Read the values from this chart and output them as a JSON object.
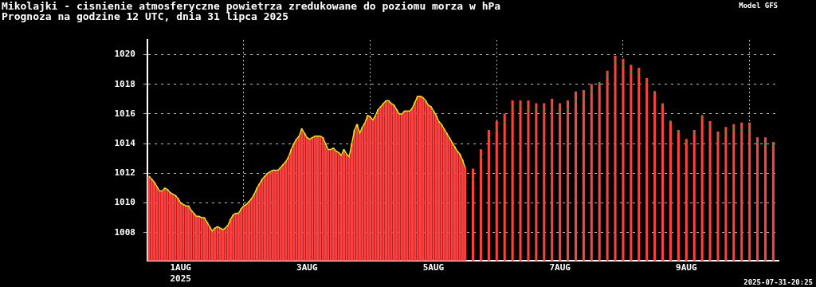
{
  "chart_data": {
    "type": "bar",
    "title": "Mikolajki - cisnienie atmosferyczne powietrza zredukowane do poziomu morza w hPa",
    "subtitle": "Prognoza na godzine 12 UTC, dnia 31 lipca 2025",
    "annotations": [
      "Model GFS",
      "2025-07-31-20:25"
    ],
    "xlim": [
      "2025-07-31T11:24",
      "2025-08-10T11:00"
    ],
    "xticks": [
      {
        "value": "2025-08-01",
        "label": "1AUG\n2025"
      },
      {
        "value": "2025-08-03",
        "label": "3AUG"
      },
      {
        "value": "2025-08-05",
        "label": "5AUG"
      },
      {
        "value": "2025-08-07",
        "label": "7AUG"
      },
      {
        "value": "2025-08-09",
        "label": "9AUG"
      }
    ],
    "ylim": [
      1006.1,
      1021
    ],
    "yticks": [
      1008,
      1010,
      1012,
      1014,
      1016,
      1018,
      1020
    ],
    "grid": true,
    "legend": false,
    "series": [
      {
        "color": "#ff4040",
        "x": [
          "2025-07-31T12:00",
          "2025-07-31T13:00",
          "2025-07-31T14:00",
          "2025-07-31T15:00",
          "2025-07-31T16:00",
          "2025-07-31T17:00",
          "2025-07-31T18:00",
          "2025-07-31T19:00",
          "2025-07-31T20:00",
          "2025-07-31T21:00",
          "2025-07-31T22:00",
          "2025-07-31T23:00",
          "2025-08-01T00:00",
          "2025-08-01T01:00",
          "2025-08-01T02:00",
          "2025-08-01T03:00",
          "2025-08-01T04:00",
          "2025-08-01T05:00",
          "2025-08-01T06:00",
          "2025-08-01T07:00",
          "2025-08-01T08:00",
          "2025-08-01T09:00",
          "2025-08-01T10:00",
          "2025-08-01T11:00",
          "2025-08-01T12:00",
          "2025-08-01T13:00",
          "2025-08-01T14:00",
          "2025-08-01T15:00",
          "2025-08-01T16:00",
          "2025-08-01T17:00",
          "2025-08-01T18:00",
          "2025-08-01T19:00",
          "2025-08-01T20:00",
          "2025-08-01T21:00",
          "2025-08-01T22:00",
          "2025-08-01T23:00",
          "2025-08-02T00:00",
          "2025-08-02T01:00",
          "2025-08-02T02:00",
          "2025-08-02T03:00",
          "2025-08-02T04:00",
          "2025-08-02T05:00",
          "2025-08-02T06:00",
          "2025-08-02T07:00",
          "2025-08-02T08:00",
          "2025-08-02T09:00",
          "2025-08-02T10:00",
          "2025-08-02T11:00",
          "2025-08-02T12:00",
          "2025-08-02T13:00",
          "2025-08-02T14:00",
          "2025-08-02T15:00",
          "2025-08-02T16:00",
          "2025-08-02T17:00",
          "2025-08-02T18:00",
          "2025-08-02T19:00",
          "2025-08-02T20:00",
          "2025-08-02T21:00",
          "2025-08-02T22:00",
          "2025-08-02T23:00",
          "2025-08-03T00:00",
          "2025-08-03T01:00",
          "2025-08-03T02:00",
          "2025-08-03T03:00",
          "2025-08-03T04:00",
          "2025-08-03T05:00",
          "2025-08-03T06:00",
          "2025-08-03T07:00",
          "2025-08-03T08:00",
          "2025-08-03T09:00",
          "2025-08-03T10:00",
          "2025-08-03T11:00",
          "2025-08-03T12:00",
          "2025-08-03T13:00",
          "2025-08-03T14:00",
          "2025-08-03T15:00",
          "2025-08-03T16:00",
          "2025-08-03T17:00",
          "2025-08-03T18:00",
          "2025-08-03T19:00",
          "2025-08-03T20:00",
          "2025-08-03T21:00",
          "2025-08-03T22:00",
          "2025-08-03T23:00",
          "2025-08-04T00:00",
          "2025-08-04T01:00",
          "2025-08-04T02:00",
          "2025-08-04T03:00",
          "2025-08-04T04:00",
          "2025-08-04T05:00",
          "2025-08-04T06:00",
          "2025-08-04T07:00",
          "2025-08-04T08:00",
          "2025-08-04T09:00",
          "2025-08-04T10:00",
          "2025-08-04T11:00",
          "2025-08-04T12:00",
          "2025-08-04T13:00",
          "2025-08-04T14:00",
          "2025-08-04T15:00",
          "2025-08-04T16:00",
          "2025-08-04T17:00",
          "2025-08-04T18:00",
          "2025-08-04T19:00",
          "2025-08-04T20:00",
          "2025-08-04T21:00",
          "2025-08-04T22:00",
          "2025-08-04T23:00",
          "2025-08-05T00:00",
          "2025-08-05T01:00",
          "2025-08-05T02:00",
          "2025-08-05T03:00",
          "2025-08-05T04:00",
          "2025-08-05T05:00",
          "2025-08-05T06:00",
          "2025-08-05T07:00",
          "2025-08-05T08:00",
          "2025-08-05T09:00",
          "2025-08-05T10:00",
          "2025-08-05T11:00",
          "2025-08-05T12:00",
          "2025-08-05T15:00",
          "2025-08-05T18:00",
          "2025-08-05T21:00",
          "2025-08-06T00:00",
          "2025-08-06T03:00",
          "2025-08-06T06:00",
          "2025-08-06T09:00",
          "2025-08-06T12:00",
          "2025-08-06T15:00",
          "2025-08-06T18:00",
          "2025-08-06T21:00",
          "2025-08-07T00:00",
          "2025-08-07T03:00",
          "2025-08-07T06:00",
          "2025-08-07T09:00",
          "2025-08-07T12:00",
          "2025-08-07T15:00",
          "2025-08-07T18:00",
          "2025-08-07T21:00",
          "2025-08-08T00:00",
          "2025-08-08T03:00",
          "2025-08-08T06:00",
          "2025-08-08T09:00",
          "2025-08-08T12:00",
          "2025-08-08T15:00",
          "2025-08-08T18:00",
          "2025-08-08T21:00",
          "2025-08-09T00:00",
          "2025-08-09T03:00",
          "2025-08-09T06:00",
          "2025-08-09T09:00",
          "2025-08-09T12:00",
          "2025-08-09T15:00",
          "2025-08-09T18:00",
          "2025-08-09T21:00",
          "2025-08-10T00:00",
          "2025-08-10T03:00",
          "2025-08-10T06:00",
          "2025-08-10T09:00"
        ],
        "values": [
          1011.8,
          1011.6,
          1011.4,
          1011.1,
          1010.8,
          1010.8,
          1011.0,
          1010.9,
          1010.7,
          1010.6,
          1010.5,
          1010.3,
          1010.0,
          1009.9,
          1009.8,
          1009.8,
          1009.5,
          1009.3,
          1009.1,
          1009.1,
          1009.0,
          1009.0,
          1008.7,
          1008.4,
          1008.1,
          1008.3,
          1008.4,
          1008.3,
          1008.2,
          1008.3,
          1008.5,
          1008.9,
          1009.2,
          1009.3,
          1009.3,
          1009.6,
          1009.8,
          1009.9,
          1010.1,
          1010.3,
          1010.6,
          1011.0,
          1011.3,
          1011.6,
          1011.8,
          1012.0,
          1012.1,
          1012.2,
          1012.2,
          1012.2,
          1012.4,
          1012.6,
          1012.8,
          1013.1,
          1013.6,
          1014.0,
          1014.3,
          1014.5,
          1015.0,
          1014.7,
          1014.4,
          1014.3,
          1014.4,
          1014.5,
          1014.5,
          1014.5,
          1014.4,
          1014.0,
          1013.6,
          1013.6,
          1013.7,
          1013.5,
          1013.4,
          1013.2,
          1013.6,
          1013.3,
          1013.1,
          1014.0,
          1014.9,
          1015.3,
          1014.7,
          1015.1,
          1015.4,
          1015.9,
          1015.8,
          1015.6,
          1015.9,
          1016.3,
          1016.5,
          1016.7,
          1016.9,
          1016.9,
          1016.7,
          1016.6,
          1016.3,
          1016.0,
          1016.0,
          1016.2,
          1016.2,
          1016.2,
          1016.4,
          1016.8,
          1017.2,
          1017.2,
          1017.1,
          1016.9,
          1016.6,
          1016.5,
          1016.2,
          1015.9,
          1015.5,
          1015.3,
          1015.0,
          1014.7,
          1014.4,
          1014.1,
          1013.8,
          1013.5,
          1013.3,
          1012.9,
          1012.4,
          1012.3,
          1013.6,
          1014.9,
          1015.5,
          1016.0,
          1016.9,
          1016.9,
          1016.9,
          1016.7,
          1016.7,
          1017.0,
          1016.7,
          1016.9,
          1017.5,
          1017.6,
          1018.0,
          1018.1,
          1018.9,
          1019.9,
          1019.7,
          1019.3,
          1019.1,
          1018.4,
          1017.5,
          1016.7,
          1015.5,
          1014.9,
          1014.3,
          1014.9,
          1015.9,
          1015.5,
          1014.8,
          1015.1,
          1015.3,
          1015.4,
          1015.4,
          1014.4,
          1014.4,
          1014.1
        ]
      },
      {
        "type": "line",
        "color": "#e8e800",
        "x": [
          "2025-07-31T12:00",
          "2025-07-31T13:00",
          "2025-07-31T14:00",
          "2025-07-31T15:00",
          "2025-07-31T16:00",
          "2025-07-31T17:00",
          "2025-07-31T18:00",
          "2025-07-31T19:00",
          "2025-07-31T20:00",
          "2025-07-31T21:00",
          "2025-07-31T22:00",
          "2025-07-31T23:00",
          "2025-08-01T00:00",
          "2025-08-01T01:00",
          "2025-08-01T02:00",
          "2025-08-01T03:00",
          "2025-08-01T04:00",
          "2025-08-01T05:00",
          "2025-08-01T06:00",
          "2025-08-01T07:00",
          "2025-08-01T08:00",
          "2025-08-01T09:00",
          "2025-08-01T10:00",
          "2025-08-01T11:00",
          "2025-08-01T12:00",
          "2025-08-01T13:00",
          "2025-08-01T14:00",
          "2025-08-01T15:00",
          "2025-08-01T16:00",
          "2025-08-01T17:00",
          "2025-08-01T18:00",
          "2025-08-01T19:00",
          "2025-08-01T20:00",
          "2025-08-01T21:00",
          "2025-08-01T22:00",
          "2025-08-01T23:00",
          "2025-08-02T00:00",
          "2025-08-02T01:00",
          "2025-08-02T02:00",
          "2025-08-02T03:00",
          "2025-08-02T04:00",
          "2025-08-02T05:00",
          "2025-08-02T06:00",
          "2025-08-02T07:00",
          "2025-08-02T08:00",
          "2025-08-02T09:00",
          "2025-08-02T10:00",
          "2025-08-02T11:00",
          "2025-08-02T12:00",
          "2025-08-02T13:00",
          "2025-08-02T14:00",
          "2025-08-02T15:00",
          "2025-08-02T16:00",
          "2025-08-02T17:00",
          "2025-08-02T18:00",
          "2025-08-02T19:00",
          "2025-08-02T20:00",
          "2025-08-02T21:00",
          "2025-08-02T22:00",
          "2025-08-02T23:00",
          "2025-08-03T00:00",
          "2025-08-03T01:00",
          "2025-08-03T02:00",
          "2025-08-03T03:00",
          "2025-08-03T04:00",
          "2025-08-03T05:00",
          "2025-08-03T06:00",
          "2025-08-03T07:00",
          "2025-08-03T08:00",
          "2025-08-03T09:00",
          "2025-08-03T10:00",
          "2025-08-03T11:00",
          "2025-08-03T12:00",
          "2025-08-03T13:00",
          "2025-08-03T14:00",
          "2025-08-03T15:00",
          "2025-08-03T16:00",
          "2025-08-03T17:00",
          "2025-08-03T18:00",
          "2025-08-03T19:00",
          "2025-08-03T20:00",
          "2025-08-03T21:00",
          "2025-08-03T22:00",
          "2025-08-03T23:00",
          "2025-08-04T00:00",
          "2025-08-04T01:00",
          "2025-08-04T02:00",
          "2025-08-04T03:00",
          "2025-08-04T04:00",
          "2025-08-04T05:00",
          "2025-08-04T06:00",
          "2025-08-04T07:00",
          "2025-08-04T08:00",
          "2025-08-04T09:00",
          "2025-08-04T10:00",
          "2025-08-04T11:00",
          "2025-08-04T12:00",
          "2025-08-04T13:00",
          "2025-08-04T14:00",
          "2025-08-04T15:00",
          "2025-08-04T16:00",
          "2025-08-04T17:00",
          "2025-08-04T18:00",
          "2025-08-04T19:00",
          "2025-08-04T20:00",
          "2025-08-04T21:00",
          "2025-08-04T22:00",
          "2025-08-04T23:00",
          "2025-08-05T00:00",
          "2025-08-05T01:00",
          "2025-08-05T02:00",
          "2025-08-05T03:00",
          "2025-08-05T04:00",
          "2025-08-05T05:00",
          "2025-08-05T06:00",
          "2025-08-05T07:00",
          "2025-08-05T08:00",
          "2025-08-05T09:00",
          "2025-08-05T10:00",
          "2025-08-05T11:00",
          "2025-08-05T12:00"
        ],
        "values": [
          1011.8,
          1011.6,
          1011.4,
          1011.1,
          1010.8,
          1010.8,
          1011.0,
          1010.9,
          1010.7,
          1010.6,
          1010.5,
          1010.3,
          1010.0,
          1009.9,
          1009.8,
          1009.8,
          1009.5,
          1009.3,
          1009.1,
          1009.1,
          1009.0,
          1009.0,
          1008.7,
          1008.4,
          1008.1,
          1008.3,
          1008.4,
          1008.3,
          1008.2,
          1008.3,
          1008.5,
          1008.9,
          1009.2,
          1009.3,
          1009.3,
          1009.6,
          1009.8,
          1009.9,
          1010.1,
          1010.3,
          1010.6,
          1011.0,
          1011.3,
          1011.6,
          1011.8,
          1012.0,
          1012.1,
          1012.2,
          1012.2,
          1012.2,
          1012.4,
          1012.6,
          1012.8,
          1013.1,
          1013.6,
          1014.0,
          1014.3,
          1014.5,
          1015.0,
          1014.7,
          1014.4,
          1014.3,
          1014.4,
          1014.5,
          1014.5,
          1014.5,
          1014.4,
          1014.0,
          1013.6,
          1013.6,
          1013.7,
          1013.5,
          1013.4,
          1013.2,
          1013.6,
          1013.3,
          1013.1,
          1014.0,
          1014.9,
          1015.3,
          1014.7,
          1015.1,
          1015.4,
          1015.9,
          1015.8,
          1015.6,
          1015.9,
          1016.3,
          1016.5,
          1016.7,
          1016.9,
          1016.9,
          1016.7,
          1016.6,
          1016.3,
          1016.0,
          1016.0,
          1016.2,
          1016.2,
          1016.2,
          1016.4,
          1016.8,
          1017.2,
          1017.2,
          1017.1,
          1016.9,
          1016.6,
          1016.5,
          1016.2,
          1015.9,
          1015.5,
          1015.3,
          1015.0,
          1014.7,
          1014.4,
          1014.1,
          1013.8,
          1013.5,
          1013.3,
          1012.9,
          1012.4
        ]
      },
      {
        "type": "scatter",
        "marker": "square",
        "color": "#00c000",
        "x": [
          "2025-08-05T15:00",
          "2025-08-05T18:00",
          "2025-08-05T21:00",
          "2025-08-06T00:00",
          "2025-08-06T03:00",
          "2025-08-06T06:00",
          "2025-08-06T09:00",
          "2025-08-06T12:00",
          "2025-08-06T15:00",
          "2025-08-06T18:00",
          "2025-08-06T21:00",
          "2025-08-07T00:00",
          "2025-08-07T03:00",
          "2025-08-07T06:00",
          "2025-08-07T09:00",
          "2025-08-07T12:00",
          "2025-08-07T15:00",
          "2025-08-07T18:00",
          "2025-08-07T21:00",
          "2025-08-08T00:00",
          "2025-08-08T03:00",
          "2025-08-08T06:00",
          "2025-08-08T09:00",
          "2025-08-08T12:00",
          "2025-08-08T15:00",
          "2025-08-08T18:00",
          "2025-08-08T21:00",
          "2025-08-09T00:00",
          "2025-08-09T03:00",
          "2025-08-09T06:00",
          "2025-08-09T09:00",
          "2025-08-09T12:00",
          "2025-08-09T15:00",
          "2025-08-09T18:00",
          "2025-08-09T21:00",
          "2025-08-10T00:00",
          "2025-08-10T03:00",
          "2025-08-10T06:00",
          "2025-08-10T09:00"
        ],
        "values": [
          1011.6,
          1013.1,
          1014.4,
          1015.0,
          1015.5,
          1016.4,
          1016.6,
          1016.3,
          1016.3,
          1016.2,
          1016.4,
          1016.1,
          1016.3,
          1016.9,
          1017.1,
          1017.6,
          1018.1,
          1018.6,
          1019.5,
          1019.3,
          1018.8,
          1018.7,
          1018.2,
          1017.5,
          1016.6,
          1015.5,
          1014.8,
          1014.1,
          1014.7,
          1015.7,
          1015.2,
          1014.4,
          1014.7,
          1015.0,
          1014.9,
          1014.9,
          1014.1,
          1014.0,
          1014.0
        ]
      }
    ]
  }
}
